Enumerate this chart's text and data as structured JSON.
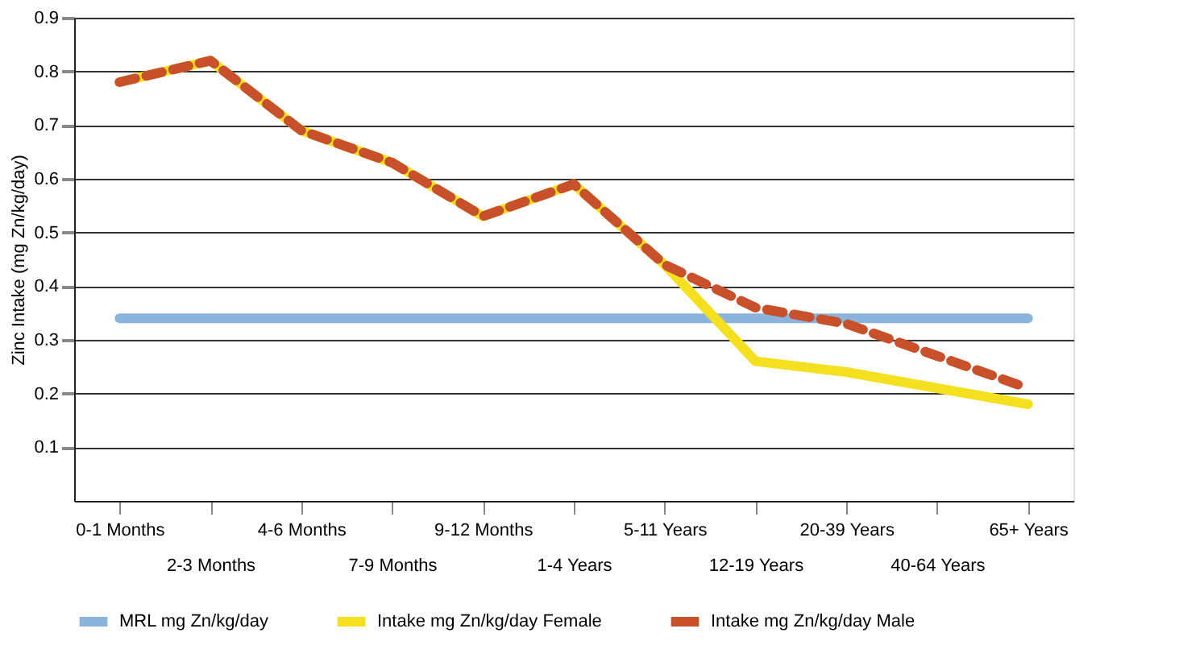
{
  "chart_data": {
    "type": "line",
    "ylabel": "Zinc Intake (mg Zn/kg/day)",
    "categories": [
      "0-1 Months",
      "2-3 Months",
      "4-6 Months",
      "7-9 Months",
      "9-12 Months",
      "1-4 Years",
      "5-11 Years",
      "12-19 Years",
      "20-39 Years",
      "40-64 Years",
      "65+ Years"
    ],
    "series": [
      {
        "name": "MRL mg Zn/kg/day",
        "color": "#8ab4dc",
        "line_style": "solid",
        "values": [
          0.34,
          0.34,
          0.34,
          0.34,
          0.34,
          0.34,
          0.34,
          0.34,
          0.34,
          0.34,
          0.34
        ]
      },
      {
        "name": "Intake mg Zn/kg/day Female",
        "color": "#f5e020",
        "line_style": "solid",
        "values": [
          0.78,
          0.82,
          0.69,
          0.63,
          0.53,
          0.59,
          0.44,
          0.26,
          0.24,
          0.21,
          0.18
        ]
      },
      {
        "name": "Intake mg Zn/kg/day Male",
        "color": "#c8502a",
        "line_style": "dashed",
        "values": [
          0.78,
          0.82,
          0.69,
          0.63,
          0.53,
          0.59,
          0.44,
          0.36,
          0.33,
          0.27,
          0.21
        ]
      }
    ],
    "ylim": [
      0,
      0.9
    ],
    "yticks": [
      0.1,
      0.2,
      0.3,
      0.4,
      0.5,
      0.6,
      0.7,
      0.8,
      0.9
    ],
    "grid": "y",
    "legend": "bottom",
    "marker": "none"
  }
}
